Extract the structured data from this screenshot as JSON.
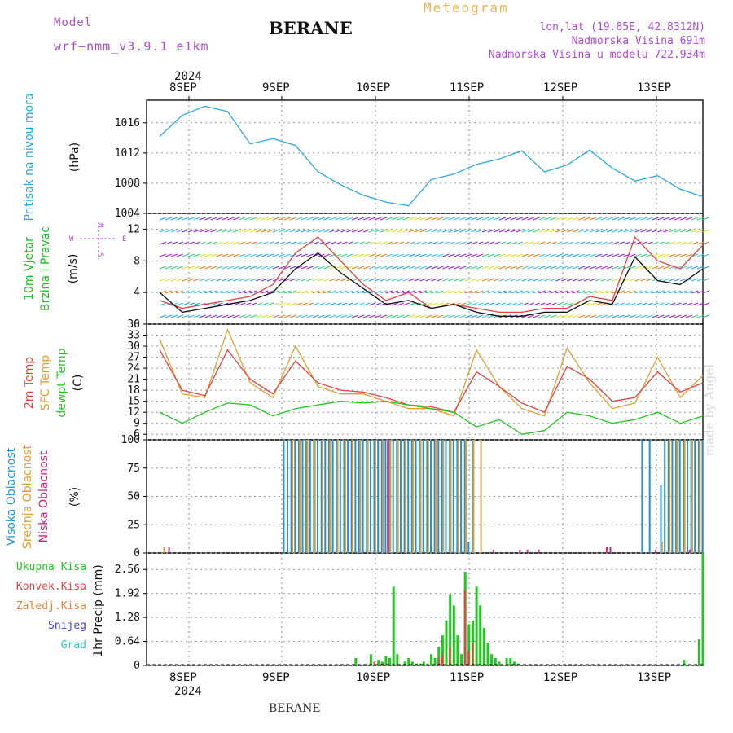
{
  "header": {
    "model_label": "Model",
    "model_version": "wrf−nmm_v3.9.1  e1km",
    "title": "BERANE",
    "meteogram_label": "Meteogram",
    "coords": "lon,lat (19.85E, 42.8312N)",
    "elevation": "Nadmorska Visina 691m",
    "model_elevation": "Nadmorska Visina u modelu 722.934m",
    "bottom_label": "BERANE",
    "watermark": "made by Angel"
  },
  "colors": {
    "pressure": "#2aa8e0",
    "t2m": "#e84040",
    "tsfc": "#e0a030",
    "dewpt": "#20c820",
    "high_cloud": "#1e90dd",
    "mid_cloud": "#e0a030",
    "low_cloud": "#d02080",
    "rain": "#20c820",
    "conv": "#e84040",
    "frozen": "#f08030",
    "snow": "#4040e0",
    "grad": "#30c0c0",
    "wind_label": "#20c020",
    "purple": "#b04ad8"
  },
  "chart_data": [
    {
      "type": "line",
      "panel": "pressure",
      "ylabel": [
        "Pritisak na nivou mora",
        "(hPa)"
      ],
      "ylim": [
        1004,
        1019
      ],
      "yticks": [
        "1016",
        "1012",
        "1008",
        "1004"
      ],
      "ytick_values": [
        1016,
        1012,
        1008,
        1004
      ],
      "x_days": [
        "8SEP",
        "9SEP",
        "10SEP",
        "11SEP",
        "12SEP",
        "13SEP"
      ],
      "x_year": "2024",
      "x_hours": [
        0,
        6,
        12,
        18,
        24,
        30,
        36,
        42,
        48,
        54,
        60,
        66,
        72,
        78,
        84,
        90,
        96,
        102,
        108,
        114,
        120,
        126,
        132,
        138,
        144
      ],
      "series": [
        {
          "values": [
            1014.2,
            1017.0,
            1018.2,
            1017.5,
            1013.2,
            1013.9,
            1013.0,
            1009.5,
            1007.8,
            1006.4,
            1005.5,
            1005.0,
            1008.5,
            1009.2,
            1010.5,
            1011.2,
            1012.3,
            1009.5,
            1010.4,
            1012.4,
            1010.0,
            1008.3,
            1009.0,
            1007.2,
            1006.2
          ]
        }
      ]
    },
    {
      "type": "line",
      "panel": "wind",
      "ylabel": [
        "10m Vjetar",
        "Brzina i Pravac",
        "(m/s)"
      ],
      "compass": [
        "N",
        "E",
        "S",
        "W"
      ],
      "ylim": [
        0,
        14
      ],
      "yticks": [
        "12",
        "8",
        "4",
        "0"
      ],
      "ytick_values": [
        12,
        8,
        4,
        0
      ],
      "x_hours": [
        0,
        6,
        12,
        18,
        24,
        30,
        36,
        42,
        48,
        54,
        60,
        66,
        72,
        78,
        84,
        90,
        96,
        102,
        108,
        114,
        120,
        126,
        132,
        138,
        144
      ],
      "series": [
        {
          "values": [
            4.0,
            1.5,
            2.0,
            2.5,
            3.0,
            4.0,
            7.0,
            9.0,
            6.5,
            4.5,
            2.5,
            3.0,
            2.0,
            2.5,
            1.5,
            1.0,
            1.0,
            1.5,
            1.5,
            3.0,
            2.5,
            8.5,
            5.5,
            5.0,
            7.0
          ]
        },
        {
          "values": [
            3.0,
            2.0,
            2.5,
            3.0,
            3.5,
            5.0,
            9.0,
            11.0,
            8.0,
            5.0,
            3.0,
            4.0,
            2.0,
            2.5,
            2.0,
            1.5,
            1.5,
            2.0,
            2.0,
            3.5,
            3.0,
            11.0,
            8.0,
            7.0,
            10.0
          ]
        }
      ]
    },
    {
      "type": "line",
      "panel": "temperature",
      "ylabel": [
        "2m Temp",
        "SFC Temp",
        "dewpt Temp",
        "(C)"
      ],
      "ylim": [
        4.5,
        36
      ],
      "yticks": [
        "36",
        "33",
        "30",
        "27",
        "24",
        "21",
        "18",
        "15",
        "12",
        "9",
        "6"
      ],
      "ytick_values": [
        36,
        33,
        30,
        27,
        24,
        21,
        18,
        15,
        12,
        9,
        6
      ],
      "x_hours": [
        0,
        6,
        12,
        18,
        24,
        30,
        36,
        42,
        48,
        54,
        60,
        66,
        72,
        78,
        84,
        90,
        96,
        102,
        108,
        114,
        120,
        126,
        132,
        138,
        144
      ],
      "series": [
        {
          "name": "2m Temp",
          "values": [
            29,
            18,
            16.5,
            29,
            21,
            17,
            26,
            20,
            18,
            17.5,
            16,
            14,
            13.5,
            12,
            23,
            19,
            14.5,
            12,
            24.5,
            21,
            15,
            16,
            23,
            17.5,
            20
          ]
        },
        {
          "name": "SFC Temp",
          "values": [
            32,
            17,
            16,
            34.5,
            20,
            16,
            30,
            19,
            17,
            17,
            15,
            13,
            13,
            11,
            29,
            19,
            13,
            11,
            29.5,
            20,
            13,
            14.5,
            27,
            16,
            22
          ]
        },
        {
          "name": "dewpt Temp",
          "values": [
            12,
            9,
            12,
            14.5,
            14,
            11,
            13,
            14,
            15,
            14.5,
            15,
            14,
            13,
            12,
            8,
            10,
            6,
            7,
            12,
            11,
            9,
            10,
            12,
            9,
            11
          ]
        }
      ]
    },
    {
      "type": "bar",
      "panel": "cloud",
      "ylabel": [
        "Visoka Oblacnost",
        "Srednja Oblacnost",
        "Niska Oblacnost",
        "(%)"
      ],
      "ylim": [
        0,
        100
      ],
      "yticks": [
        "100",
        "75",
        "50",
        "25",
        "0"
      ],
      "ytick_values": [
        100,
        75,
        50,
        25,
        0
      ],
      "series": [
        {
          "name": "Visoka Oblacnost",
          "values_by_hour": [
            [
              33,
              100
            ],
            [
              34,
              100
            ],
            [
              35,
              100
            ],
            [
              36,
              100
            ],
            [
              37,
              100
            ],
            [
              38,
              100
            ],
            [
              39,
              100
            ],
            [
              40,
              100
            ],
            [
              41,
              100
            ],
            [
              42,
              100
            ],
            [
              43,
              100
            ],
            [
              44,
              100
            ],
            [
              45,
              100
            ],
            [
              46,
              100
            ],
            [
              47,
              100
            ],
            [
              48,
              100
            ],
            [
              49,
              100
            ],
            [
              50,
              100
            ],
            [
              51,
              100
            ],
            [
              52,
              100
            ],
            [
              53,
              100
            ],
            [
              54,
              100
            ],
            [
              55,
              100
            ],
            [
              56,
              100
            ],
            [
              57,
              100
            ],
            [
              58,
              100
            ],
            [
              59,
              100
            ],
            [
              60,
              100
            ],
            [
              61,
              100
            ],
            [
              62,
              100
            ],
            [
              63,
              100
            ],
            [
              64,
              100
            ],
            [
              65,
              100
            ],
            [
              66,
              100
            ],
            [
              67,
              100
            ],
            [
              68,
              100
            ],
            [
              69,
              100
            ],
            [
              70,
              100
            ],
            [
              71,
              100
            ],
            [
              72,
              100
            ],
            [
              73,
              100
            ],
            [
              74,
              100
            ],
            [
              75,
              100
            ],
            [
              76,
              100
            ],
            [
              77,
              100
            ],
            [
              78,
              100
            ],
            [
              79,
              100
            ],
            [
              80,
              100
            ],
            [
              81,
              100
            ],
            [
              82,
              10
            ],
            [
              83,
              100
            ],
            [
              128,
              100
            ],
            [
              130,
              100
            ],
            [
              133,
              60
            ],
            [
              134,
              100
            ],
            [
              135,
              100
            ],
            [
              136,
              100
            ],
            [
              137,
              100
            ],
            [
              138,
              100
            ],
            [
              139,
              100
            ],
            [
              140,
              100
            ],
            [
              141,
              100
            ],
            [
              142,
              100
            ],
            [
              143,
              100
            ],
            [
              144,
              100
            ]
          ]
        },
        {
          "name": "Srednja Oblacnost",
          "values_by_hour": [
            [
              1,
              5
            ],
            [
              35,
              100
            ],
            [
              37,
              100
            ],
            [
              39,
              100
            ],
            [
              41,
              100
            ],
            [
              43,
              100
            ],
            [
              45,
              100
            ],
            [
              47,
              100
            ],
            [
              49,
              100
            ],
            [
              51,
              100
            ],
            [
              53,
              100
            ],
            [
              55,
              100
            ],
            [
              57,
              100
            ],
            [
              59,
              100
            ],
            [
              61,
              100
            ],
            [
              63,
              100
            ],
            [
              65,
              100
            ],
            [
              67,
              100
            ],
            [
              69,
              100
            ],
            [
              71,
              100
            ],
            [
              73,
              100
            ],
            [
              75,
              100
            ],
            [
              77,
              100
            ],
            [
              79,
              100
            ],
            [
              81,
              100
            ],
            [
              83,
              100
            ],
            [
              85,
              100
            ],
            [
              133,
              10
            ],
            [
              135,
              100
            ],
            [
              137,
              100
            ],
            [
              139,
              100
            ],
            [
              141,
              100
            ],
            [
              143,
              100
            ]
          ]
        },
        {
          "name": "Niska Oblacnost",
          "values_by_hour": [
            [
              2,
              5
            ],
            [
              60,
              100
            ],
            [
              88,
              3
            ],
            [
              95,
              3
            ],
            [
              97,
              3
            ],
            [
              100,
              3
            ],
            [
              118,
              5
            ],
            [
              119,
              5
            ],
            [
              131,
              3
            ],
            [
              140,
              3
            ]
          ]
        }
      ]
    },
    {
      "type": "bar",
      "panel": "precip",
      "ylabel": [
        "1hr Precip (mm)"
      ],
      "legend": [
        "Ukupna Kisa",
        "Konvek.Kisa",
        "Zaledj.Kisa",
        "Snijeg",
        "Grad"
      ],
      "ylim": [
        0,
        3.0
      ],
      "yticks": [
        "2.56",
        "1.92",
        "1.28",
        "0.64",
        "0"
      ],
      "ytick_values": [
        2.56,
        1.92,
        1.28,
        0.64,
        0
      ],
      "x_days": [
        "8SEP",
        "9SEP",
        "10SEP",
        "11SEP",
        "12SEP",
        "13SEP"
      ],
      "x_year": "2024",
      "series": [
        {
          "name": "Ukupna Kisa",
          "values_by_hour": [
            [
              52,
              0.2
            ],
            [
              56,
              0.3
            ],
            [
              58,
              0.15
            ],
            [
              59,
              0.1
            ],
            [
              60,
              0.25
            ],
            [
              61,
              0.2
            ],
            [
              62,
              2.1
            ],
            [
              63,
              0.3
            ],
            [
              65,
              0.1
            ],
            [
              66,
              0.2
            ],
            [
              67,
              0.1
            ],
            [
              68,
              0.05
            ],
            [
              69,
              0.05
            ],
            [
              70,
              0.1
            ],
            [
              72,
              0.3
            ],
            [
              73,
              0.2
            ],
            [
              74,
              0.5
            ],
            [
              75,
              0.8
            ],
            [
              76,
              1.2
            ],
            [
              77,
              1.9
            ],
            [
              78,
              1.6
            ],
            [
              79,
              0.8
            ],
            [
              80,
              0.3
            ],
            [
              81,
              2.5
            ],
            [
              82,
              1.1
            ],
            [
              83,
              1.2
            ],
            [
              84,
              2.1
            ],
            [
              85,
              1.6
            ],
            [
              86,
              1.0
            ],
            [
              87,
              0.6
            ],
            [
              88,
              0.3
            ],
            [
              89,
              0.2
            ],
            [
              90,
              0.1
            ],
            [
              92,
              0.2
            ],
            [
              93,
              0.2
            ],
            [
              94,
              0.1
            ],
            [
              95,
              0.05
            ],
            [
              139,
              0.15
            ],
            [
              143,
              0.7
            ],
            [
              144,
              3.0
            ]
          ]
        },
        {
          "name": "Konvek.Kisa",
          "values_by_hour": [
            [
              57,
              0.1
            ],
            [
              59,
              0.05
            ],
            [
              74,
              0.2
            ],
            [
              75,
              0.3
            ],
            [
              77,
              0.5
            ],
            [
              81,
              2.0
            ],
            [
              82,
              0.4
            ],
            [
              83,
              0.6
            ]
          ]
        }
      ]
    }
  ]
}
